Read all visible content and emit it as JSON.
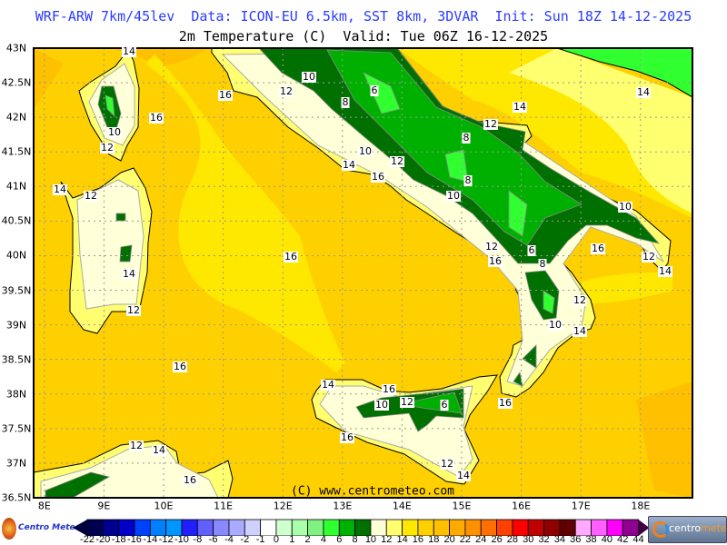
{
  "header": {
    "title": "WRF-ARW 7km/45lev  Data: ICON-EU 6.5km, SST 8km, 3DVAR  Init: Sun 18Z 14-12-2025",
    "subtitle": "2m Temperature (C)  Valid: Tue 06Z 16-12-2025"
  },
  "map": {
    "lat_labels": [
      "43N",
      "42.5N",
      "42N",
      "41.5N",
      "41N",
      "40.5N",
      "40N",
      "39.5N",
      "39N",
      "38.5N",
      "38N",
      "37.5N",
      "37N",
      "36.5N"
    ],
    "lon_labels": [
      "8E",
      "9E",
      "10E",
      "11E",
      "12E",
      "13E",
      "14E",
      "15E",
      "16E",
      "17E",
      "18E"
    ],
    "contour_labels": [
      "14",
      "10",
      "12",
      "16",
      "6",
      "8",
      "14",
      "14",
      "16",
      "10",
      "12",
      "12",
      "8",
      "10",
      "12",
      "14",
      "16",
      "14",
      "12",
      "10",
      "8",
      "10",
      "16",
      "12",
      "16",
      "6",
      "8",
      "16",
      "12",
      "14",
      "12",
      "12",
      "14",
      "10",
      "14",
      "16",
      "14",
      "16",
      "12",
      "10",
      "6",
      "16",
      "16",
      "12",
      "14",
      "16",
      "12",
      "14"
    ],
    "copyright": "(C) www.centrometeo.com",
    "colors": {
      "sea_16_18": "#ffd000",
      "sea_14_16": "#ffe800",
      "sea_12_14": "#ffff70",
      "sea_18_20": "#ffc000",
      "land_10_12": "#ffffd8",
      "green_8_10": "#007000",
      "green_6_8": "#00b000",
      "green_4_6": "#30ff30",
      "green_2_4": "#80f080"
    }
  },
  "colorbar": {
    "labels": [
      "-22",
      "-20",
      "-18",
      "-16",
      "-14",
      "-12",
      "-10",
      "-8",
      "-6",
      "-4",
      "-2",
      "-1",
      "0",
      "1",
      "2",
      "4",
      "6",
      "8",
      "10",
      "12",
      "14",
      "16",
      "18",
      "20",
      "22",
      "24",
      "26",
      "28",
      "30",
      "32",
      "34",
      "36",
      "38",
      "40",
      "42",
      "44"
    ],
    "colors": [
      "#000050",
      "#000090",
      "#0000c8",
      "#0040ff",
      "#0080ff",
      "#0096ff",
      "#2020ff",
      "#6060ff",
      "#8888ff",
      "#aaaaff",
      "#d0d0ff",
      "#ffffff",
      "#d0ffd0",
      "#aaffaa",
      "#80f080",
      "#30ff30",
      "#00b000",
      "#007000",
      "#ffffd8",
      "#ffff70",
      "#ffe800",
      "#ffd000",
      "#ffc000",
      "#ffaa00",
      "#ff9000",
      "#ff7000",
      "#ff4000",
      "#ff0000",
      "#c00000",
      "#900000",
      "#600000",
      "#ffaaff",
      "#ff60ff",
      "#ff00ff",
      "#900090"
    ],
    "low_arrow_color": "#000040",
    "high_arrow_color": "#400040"
  },
  "logos": {
    "left": "Centro Meteo Aquesano",
    "right_a": "centro",
    "right_b": "meteo"
  }
}
